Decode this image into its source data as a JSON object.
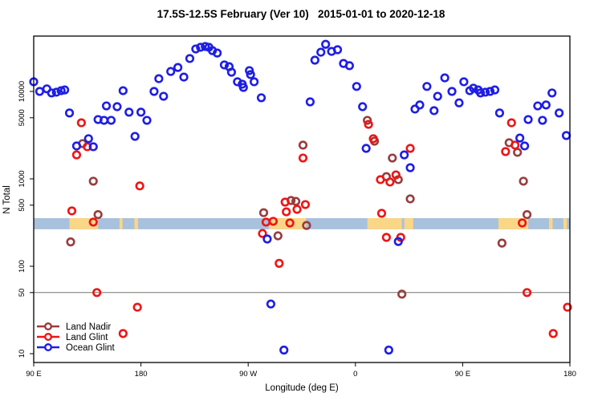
{
  "chart_data": {
    "type": "scatter",
    "title": "17.5S-12.5S February (Ver 10)   2015-01-01 to 2020-12-18",
    "xlabel": "Longitude (deg E)",
    "ylabel": "N Total",
    "y_scale": "log",
    "ylim": [
      8,
      45000
    ],
    "x_axis": {
      "min": 90,
      "max": 540,
      "ticks": [
        {
          "v": 90,
          "label": "90 E"
        },
        {
          "v": 180,
          "label": "180"
        },
        {
          "v": 270,
          "label": "90 W"
        },
        {
          "v": 360,
          "label": "0"
        },
        {
          "v": 450,
          "label": "90 E"
        },
        {
          "v": 540,
          "label": "180"
        }
      ]
    },
    "y_ticks": [
      10,
      50,
      100,
      500,
      1000,
      5000,
      10000
    ],
    "hline": 50,
    "map_strip": {
      "ocean_color": "#A8C1DD",
      "land_color": "#FAD687",
      "n_range": [
        265,
        355
      ],
      "land_segments_deg": [
        [
          120,
          144
        ],
        [
          162,
          164.5
        ],
        [
          174.5,
          177.5
        ],
        [
          287.5,
          318.5
        ],
        [
          370,
          399
        ],
        [
          401,
          408.5
        ],
        [
          480,
          505
        ],
        [
          522.5,
          525.5
        ],
        [
          534.5,
          537.5
        ]
      ]
    },
    "series": [
      {
        "name": "Land Nadir",
        "color": "#9A3C3C",
        "points": [
          [
            131,
            2530
          ],
          [
            140,
            940
          ],
          [
            144,
            390
          ],
          [
            121,
            190
          ],
          [
            283,
            410
          ],
          [
            306,
            565
          ],
          [
            310,
            553
          ],
          [
            319,
            293
          ],
          [
            295,
            223
          ],
          [
            316,
            2430
          ],
          [
            370,
            4670
          ],
          [
            376,
            2700
          ],
          [
            386,
            1060
          ],
          [
            391,
            1730
          ],
          [
            396,
            980
          ],
          [
            406,
            590
          ],
          [
            399,
            48
          ],
          [
            483,
            184
          ],
          [
            489,
            2590
          ],
          [
            496,
            2010
          ],
          [
            501,
            940
          ],
          [
            504,
            390
          ]
        ]
      },
      {
        "name": "Land Glint",
        "color": "#EE1515",
        "points": [
          [
            130,
            4380
          ],
          [
            126,
            1880
          ],
          [
            135,
            2330
          ],
          [
            122,
            430
          ],
          [
            140,
            320
          ],
          [
            143,
            50
          ],
          [
            165,
            17
          ],
          [
            177,
            34
          ],
          [
            179,
            830
          ],
          [
            282,
            237
          ],
          [
            285,
            320
          ],
          [
            291,
            327
          ],
          [
            301,
            542
          ],
          [
            302,
            420
          ],
          [
            305,
            313
          ],
          [
            311,
            448
          ],
          [
            318,
            508
          ],
          [
            296,
            108
          ],
          [
            316,
            1730
          ],
          [
            371,
            4200
          ],
          [
            375,
            2880
          ],
          [
            381,
            980
          ],
          [
            389,
            920
          ],
          [
            394,
            1110
          ],
          [
            382,
            403
          ],
          [
            386,
            214
          ],
          [
            398,
            214
          ],
          [
            406,
            2230
          ],
          [
            486,
            2050
          ],
          [
            494,
            2430
          ],
          [
            491,
            4380
          ],
          [
            500,
            313
          ],
          [
            504,
            50
          ],
          [
            526,
            17
          ],
          [
            538,
            34
          ]
        ]
      },
      {
        "name": "Ocean Glint",
        "color": "#1E1EE6",
        "points": [
          [
            90,
            12900
          ],
          [
            95,
            10000
          ],
          [
            101,
            10700
          ],
          [
            105,
            9600
          ],
          [
            109,
            9800
          ],
          [
            113,
            10200
          ],
          [
            116,
            10400
          ],
          [
            120,
            5670
          ],
          [
            126,
            2380
          ],
          [
            136,
            2880
          ],
          [
            140,
            2330
          ],
          [
            144,
            4770
          ],
          [
            149,
            4670
          ],
          [
            151,
            6830
          ],
          [
            155,
            4670
          ],
          [
            160,
            6690
          ],
          [
            165,
            10200
          ],
          [
            170,
            5790
          ],
          [
            175,
            3060
          ],
          [
            180,
            5790
          ],
          [
            185,
            4670
          ],
          [
            191,
            10000
          ],
          [
            195,
            14000
          ],
          [
            199,
            8800
          ],
          [
            205,
            16900
          ],
          [
            211,
            18800
          ],
          [
            216,
            14600
          ],
          [
            221,
            23800
          ],
          [
            226,
            30600
          ],
          [
            230,
            32000
          ],
          [
            234,
            32700
          ],
          [
            237,
            32000
          ],
          [
            240,
            29300
          ],
          [
            244,
            27500
          ],
          [
            250,
            20100
          ],
          [
            254,
            19200
          ],
          [
            256,
            16600
          ],
          [
            261,
            12900
          ],
          [
            265,
            12100
          ],
          [
            266,
            11100
          ],
          [
            271,
            17300
          ],
          [
            272,
            15600
          ],
          [
            275,
            12900
          ],
          [
            281,
            8460
          ],
          [
            286,
            205
          ],
          [
            289,
            37
          ],
          [
            300,
            11
          ],
          [
            322,
            7600
          ],
          [
            326,
            22800
          ],
          [
            331,
            28100
          ],
          [
            335,
            34600
          ],
          [
            340,
            28700
          ],
          [
            345,
            30000
          ],
          [
            350,
            20900
          ],
          [
            355,
            19700
          ],
          [
            361,
            11400
          ],
          [
            366,
            6690
          ],
          [
            369,
            2230
          ],
          [
            388,
            11
          ],
          [
            396,
            192
          ],
          [
            401,
            1880
          ],
          [
            406,
            1340
          ],
          [
            410,
            6290
          ],
          [
            414,
            7000
          ],
          [
            420,
            11400
          ],
          [
            426,
            6030
          ],
          [
            429,
            8800
          ],
          [
            435,
            14300
          ],
          [
            441,
            10000
          ],
          [
            447,
            7400
          ],
          [
            451,
            12900
          ],
          [
            456,
            10200
          ],
          [
            459,
            10900
          ],
          [
            463,
            10400
          ],
          [
            465,
            9600
          ],
          [
            469,
            9800
          ],
          [
            473,
            10000
          ],
          [
            477,
            10400
          ],
          [
            481,
            5670
          ],
          [
            498,
            2930
          ],
          [
            502,
            2380
          ],
          [
            505,
            4770
          ],
          [
            513,
            6830
          ],
          [
            517,
            4670
          ],
          [
            520,
            7000
          ],
          [
            525,
            9600
          ],
          [
            531,
            5670
          ],
          [
            537,
            3130
          ]
        ]
      }
    ],
    "legend": {
      "position": "bottom-left"
    }
  }
}
